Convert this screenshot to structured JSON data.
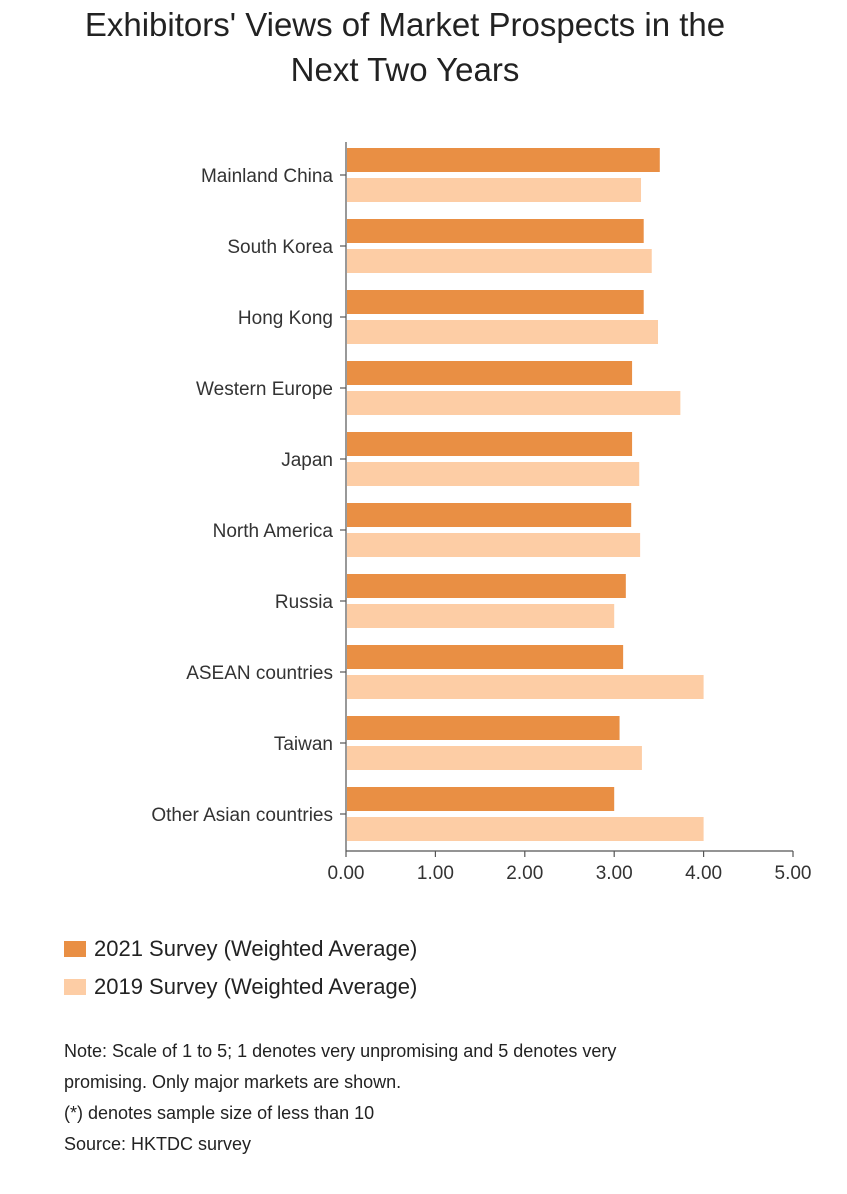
{
  "title_line1": "Exhibitors' Views of Market Prospects in the",
  "title_line2": "Next Two Years",
  "chart_data": {
    "type": "bar",
    "orientation": "horizontal",
    "title": "Exhibitors' Views of Market Prospects in the Next Two Years",
    "categories": [
      "Mainland China",
      "South Korea",
      "Hong Kong",
      "Western Europe",
      "Japan",
      "North America",
      "Russia",
      "ASEAN countries",
      "Taiwan",
      "Other Asian countries"
    ],
    "series": [
      {
        "name": "2021 Survey (Weighted Average)",
        "color": "#E98F44",
        "values": [
          3.51,
          3.33,
          3.33,
          3.2,
          3.2,
          3.19,
          3.13,
          3.1,
          3.06,
          3.0
        ]
      },
      {
        "name": "2019 Survey (Weighted Average)",
        "color": "#FDCDA5",
        "values": [
          3.3,
          3.42,
          3.49,
          3.74,
          3.28,
          3.29,
          3.0,
          4.0,
          3.31,
          4.0
        ]
      }
    ],
    "xlim": [
      0,
      5
    ],
    "xticks": [
      "0.00",
      "1.00",
      "2.00",
      "3.00",
      "4.00",
      "5.00"
    ],
    "xlabel": "",
    "ylabel": "",
    "grid": false,
    "legend_position": "bottom-left"
  },
  "notes": [
    "Note: Scale of 1 to 5; 1 denotes very unpromising and 5 denotes very",
    "promising. Only major markets are shown.",
    "(*) denotes sample size of less than 10",
    "Source: HKTDC survey"
  ]
}
